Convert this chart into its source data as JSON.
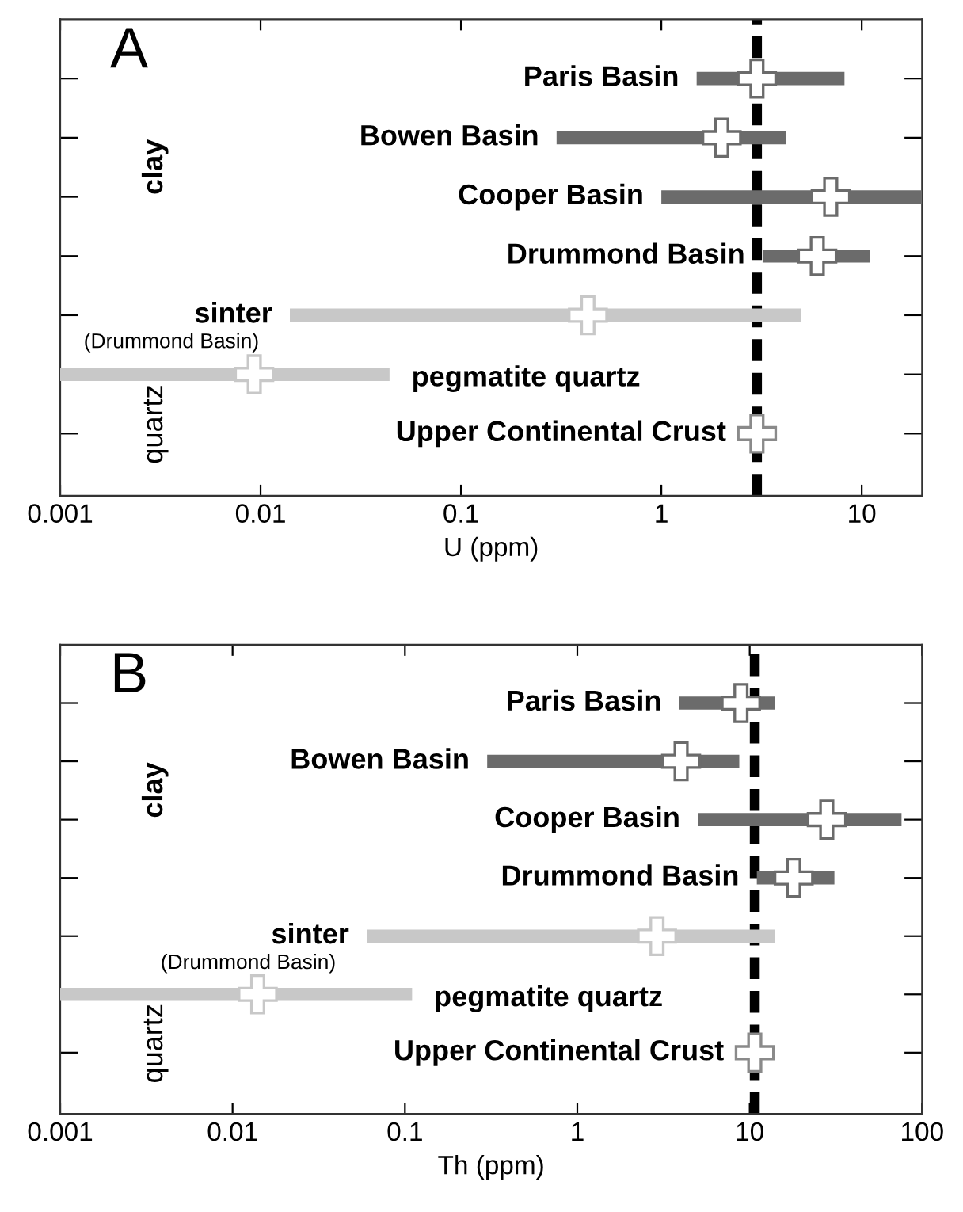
{
  "chart_data": [
    {
      "type": "scatter",
      "orientation": "horizontal",
      "log": "x",
      "marker": "cross",
      "grid": false,
      "tick_labels": "x",
      "xlabel": "U (ppm)",
      "xlim": [
        0.001,
        20
      ],
      "xticks": [
        0.001,
        0.01,
        0.1,
        1,
        10
      ],
      "categories": [
        "Paris Basin",
        "Bowen Basin",
        "Cooper Basin",
        "Drummond Basin",
        "sinter",
        "pegmatite quartz",
        "Upper Continental Crust"
      ],
      "series": [
        {
          "color": "#6b6b6b",
          "values": [
            3.0,
            2.0,
            7.0,
            6.0,
            null,
            null,
            null
          ],
          "errors": [
            [
              1.5,
              8.2
            ],
            [
              0.3,
              4.2
            ],
            [
              1.0,
              20
            ],
            [
              3.2,
              11
            ],
            null,
            null,
            null
          ]
        },
        {
          "color": "#c8c8c8",
          "values": [
            null,
            null,
            null,
            null,
            0.43,
            0.0093,
            null
          ],
          "errors": [
            null,
            null,
            null,
            null,
            [
              0.014,
              5.0
            ],
            [
              0.001,
              0.044
            ],
            null
          ]
        },
        {
          "color": "#8a8a8a",
          "values": [
            null,
            null,
            null,
            null,
            null,
            null,
            3.0
          ]
        }
      ],
      "ref_lines": [
        {
          "axis": "x",
          "value": 3.0,
          "color": "#000000",
          "line_style": "dashed"
        }
      ],
      "annotations": [
        "A",
        "clay",
        "quartz",
        "(Drummond Basin)"
      ]
    },
    {
      "type": "scatter",
      "orientation": "horizontal",
      "log": "x",
      "marker": "cross",
      "grid": false,
      "tick_labels": "x",
      "xlabel": "Th (ppm)",
      "xlim": [
        0.001,
        100
      ],
      "xticks": [
        0.001,
        0.01,
        0.1,
        1,
        10,
        100
      ],
      "categories": [
        "Paris Basin",
        "Bowen Basin",
        "Cooper Basin",
        "Drummond Basin",
        "sinter",
        "pegmatite quartz",
        "Upper Continental Crust"
      ],
      "series": [
        {
          "color": "#6b6b6b",
          "values": [
            8.9,
            4.0,
            28,
            18,
            null,
            null,
            null
          ],
          "errors": [
            [
              3.9,
              14
            ],
            [
              0.3,
              8.7
            ],
            [
              5.0,
              76
            ],
            [
              11,
              31
            ],
            null,
            null,
            null
          ]
        },
        {
          "color": "#c8c8c8",
          "values": [
            null,
            null,
            null,
            null,
            2.9,
            0.014,
            null
          ],
          "errors": [
            null,
            null,
            null,
            null,
            [
              0.06,
              14
            ],
            [
              0.001,
              0.11
            ],
            null
          ]
        },
        {
          "color": "#8a8a8a",
          "values": [
            null,
            null,
            null,
            null,
            null,
            null,
            10.7
          ]
        }
      ],
      "ref_lines": [
        {
          "axis": "x",
          "value": 10.7,
          "color": "#000000",
          "line_style": "dashed"
        }
      ],
      "annotations": [
        "B",
        "clay",
        "quartz",
        "(Drummond Basin)"
      ]
    }
  ]
}
